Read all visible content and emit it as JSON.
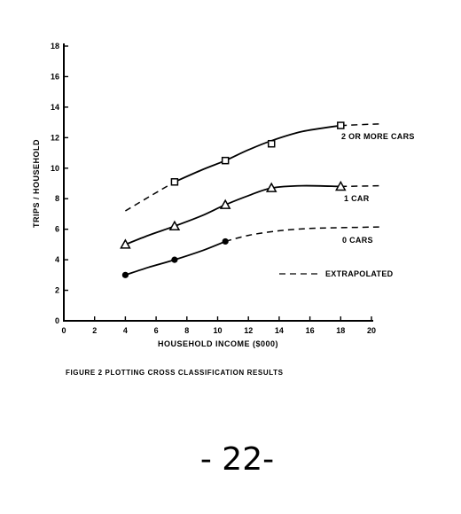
{
  "chart_data": {
    "type": "line",
    "title": "",
    "xlabel": "HOUSEHOLD INCOME ($000)",
    "ylabel": "TRIPS / HOUSEHOLD",
    "xlim": [
      0,
      20
    ],
    "ylim": [
      0,
      18
    ],
    "x_ticks": [
      "0",
      "2",
      "4",
      "6",
      "8",
      "10",
      "12",
      "14",
      "16",
      "18",
      "20"
    ],
    "y_ticks": [
      "0",
      "2",
      "4",
      "6",
      "8",
      "10",
      "12",
      "14",
      "16",
      "18"
    ],
    "grid": false,
    "series": [
      {
        "name": "2 OR MORE CARS",
        "marker": "square",
        "points": [
          [
            7.2,
            9.1
          ],
          [
            10.5,
            10.5
          ],
          [
            13.5,
            11.6
          ],
          [
            18.0,
            12.8
          ]
        ],
        "solid_curve": [
          [
            7.2,
            9.1
          ],
          [
            9.0,
            9.9
          ],
          [
            10.5,
            10.5
          ],
          [
            12.0,
            11.2
          ],
          [
            13.5,
            11.8
          ],
          [
            15.5,
            12.4
          ],
          [
            18.0,
            12.8
          ]
        ],
        "extrapolated": [
          [
            [
              4.0,
              7.2
            ],
            [
              5.5,
              8.1
            ],
            [
              7.2,
              9.1
            ]
          ],
          [
            [
              18.0,
              12.8
            ],
            [
              20.5,
              12.9
            ]
          ]
        ]
      },
      {
        "name": "1 CAR",
        "marker": "triangle",
        "points": [
          [
            4.0,
            5.0
          ],
          [
            7.2,
            6.2
          ],
          [
            10.5,
            7.6
          ],
          [
            13.5,
            8.7
          ],
          [
            18.0,
            8.8
          ]
        ],
        "solid_curve": [
          [
            4.0,
            5.0
          ],
          [
            5.5,
            5.6
          ],
          [
            7.2,
            6.2
          ],
          [
            9.0,
            6.9
          ],
          [
            10.5,
            7.6
          ],
          [
            12.0,
            8.2
          ],
          [
            13.5,
            8.7
          ],
          [
            15.5,
            8.85
          ],
          [
            18.0,
            8.8
          ]
        ],
        "extrapolated": [
          [
            [
              18.0,
              8.8
            ],
            [
              20.5,
              8.85
            ]
          ]
        ]
      },
      {
        "name": "0 CARS",
        "marker": "dot",
        "points": [
          [
            4.0,
            3.0
          ],
          [
            7.2,
            4.0
          ],
          [
            10.5,
            5.2
          ]
        ],
        "solid_curve": [
          [
            4.0,
            3.0
          ],
          [
            5.5,
            3.5
          ],
          [
            7.2,
            4.0
          ],
          [
            9.0,
            4.6
          ],
          [
            10.5,
            5.2
          ]
        ],
        "extrapolated": [
          [
            [
              10.5,
              5.2
            ],
            [
              12.0,
              5.6
            ],
            [
              14.0,
              5.9
            ],
            [
              16.0,
              6.05
            ],
            [
              18.0,
              6.1
            ],
            [
              20.5,
              6.15
            ]
          ]
        ]
      }
    ],
    "annotations": [
      {
        "text": "EXTRAPOLATED",
        "style": "dashed-legend"
      }
    ]
  },
  "figure": {
    "caption": "FIGURE 2  PLOTTING CROSS CLASSIFICATION RESULTS"
  },
  "page": {
    "number": "- 22-"
  }
}
